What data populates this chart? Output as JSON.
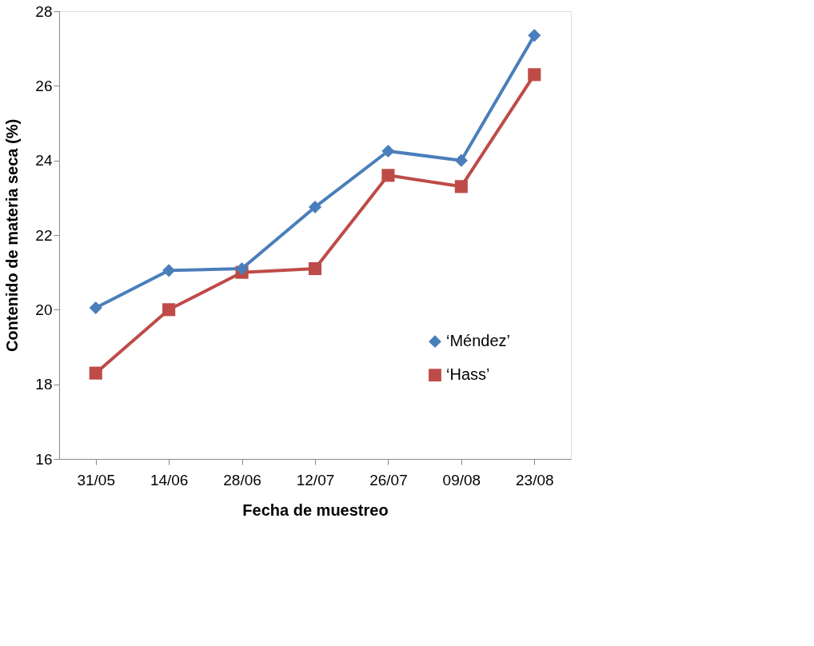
{
  "chart_data": {
    "type": "line",
    "xlabel": "Fecha de muestreo",
    "ylabel": "Contenido de materia seca (%)",
    "categories": [
      "31/05",
      "14/06",
      "28/06",
      "12/07",
      "26/07",
      "09/08",
      "23/08"
    ],
    "series": [
      {
        "name": "‘Méndez’",
        "color": "#4a7ebb",
        "marker": "diamond",
        "values": [
          20.05,
          21.05,
          21.1,
          22.75,
          24.25,
          24.0,
          27.35
        ]
      },
      {
        "name": "‘Hass’",
        "color": "#be4b48",
        "marker": "square",
        "values": [
          18.3,
          20.0,
          21.0,
          21.1,
          23.6,
          23.3,
          26.3
        ]
      }
    ],
    "ylim": [
      16,
      28
    ],
    "yticks": [
      16,
      18,
      20,
      22,
      24,
      26,
      28
    ],
    "grid": false,
    "legend": "right",
    "line_style": "solid"
  }
}
